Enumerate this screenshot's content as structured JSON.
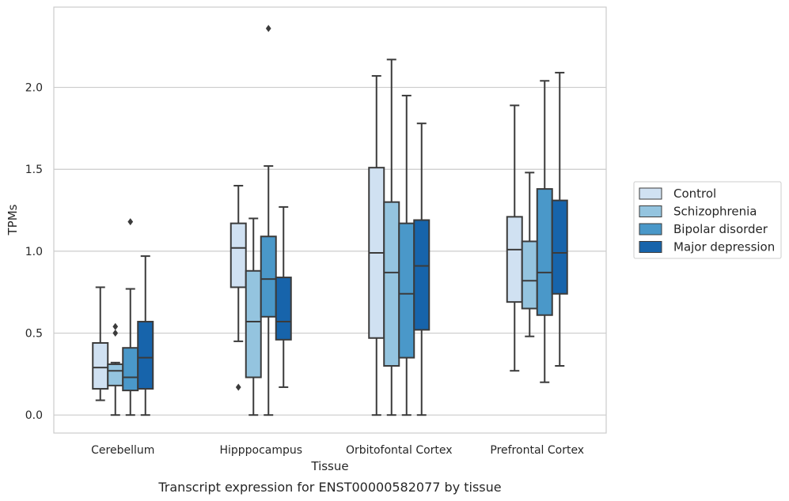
{
  "caption": "Transcript expression for ENST00000582077 by tissue",
  "chart_data": {
    "type": "box",
    "xlabel": "Tissue",
    "ylabel": "TPMs",
    "ylim": [
      -0.11,
      2.49
    ],
    "yticks": [
      "0.0",
      "0.5",
      "1.0",
      "1.5",
      "2.0"
    ],
    "grid": "horizontal",
    "legend_position": "right",
    "categories": [
      "Cerebellum",
      "Hipppocampus",
      "Orbitofontal Cortex",
      "Prefrontal Cortex"
    ],
    "series": [
      {
        "name": "Control",
        "color": "#d0e1f2",
        "boxes": [
          {
            "whislo": 0.09,
            "q1": 0.16,
            "med": 0.29,
            "q3": 0.44,
            "whishi": 0.78,
            "fliers": []
          },
          {
            "whislo": 0.45,
            "q1": 0.78,
            "med": 1.02,
            "q3": 1.17,
            "whishi": 1.4,
            "fliers": [
              0.17
            ]
          },
          {
            "whislo": 0.0,
            "q1": 0.47,
            "med": 0.99,
            "q3": 1.51,
            "whishi": 2.07,
            "fliers": []
          },
          {
            "whislo": 0.27,
            "q1": 0.69,
            "med": 1.01,
            "q3": 1.21,
            "whishi": 1.89,
            "fliers": []
          }
        ]
      },
      {
        "name": "Schizophrenia",
        "color": "#94c4df",
        "boxes": [
          {
            "whislo": 0.0,
            "q1": 0.18,
            "med": 0.27,
            "q3": 0.31,
            "whishi": 0.32,
            "fliers": [
              0.5,
              0.54
            ]
          },
          {
            "whislo": 0.0,
            "q1": 0.23,
            "med": 0.57,
            "q3": 0.88,
            "whishi": 1.2,
            "fliers": []
          },
          {
            "whislo": 0.0,
            "q1": 0.3,
            "med": 0.87,
            "q3": 1.3,
            "whishi": 2.17,
            "fliers": []
          },
          {
            "whislo": 0.48,
            "q1": 0.65,
            "med": 0.82,
            "q3": 1.06,
            "whishi": 1.48,
            "fliers": []
          }
        ]
      },
      {
        "name": "Bipolar disorder",
        "color": "#4a98c9",
        "boxes": [
          {
            "whislo": 0.0,
            "q1": 0.15,
            "med": 0.23,
            "q3": 0.41,
            "whishi": 0.77,
            "fliers": [
              1.18
            ]
          },
          {
            "whislo": 0.0,
            "q1": 0.6,
            "med": 0.83,
            "q3": 1.09,
            "whishi": 1.52,
            "fliers": [
              2.36
            ]
          },
          {
            "whislo": 0.0,
            "q1": 0.35,
            "med": 0.74,
            "q3": 1.17,
            "whishi": 1.95,
            "fliers": []
          },
          {
            "whislo": 0.2,
            "q1": 0.61,
            "med": 0.87,
            "q3": 1.38,
            "whishi": 2.04,
            "fliers": []
          }
        ]
      },
      {
        "name": "Major depression",
        "color": "#1764ab",
        "boxes": [
          {
            "whislo": 0.0,
            "q1": 0.16,
            "med": 0.35,
            "q3": 0.57,
            "whishi": 0.97,
            "fliers": []
          },
          {
            "whislo": 0.17,
            "q1": 0.46,
            "med": 0.57,
            "q3": 0.84,
            "whishi": 1.27,
            "fliers": []
          },
          {
            "whislo": 0.0,
            "q1": 0.52,
            "med": 0.91,
            "q3": 1.19,
            "whishi": 1.78,
            "fliers": []
          },
          {
            "whislo": 0.3,
            "q1": 0.74,
            "med": 0.99,
            "q3": 1.31,
            "whishi": 2.09,
            "fliers": []
          }
        ]
      }
    ]
  }
}
